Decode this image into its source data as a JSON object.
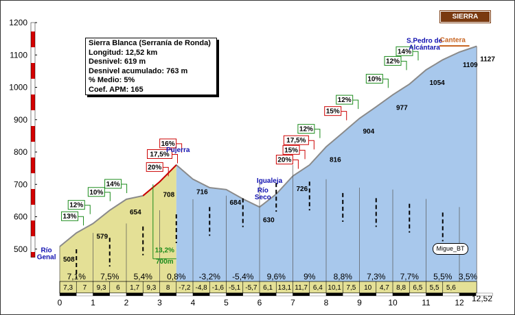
{
  "chart_data": {
    "type": "area",
    "title": "",
    "xlabel": "",
    "ylabel": "",
    "xlim": [
      0,
      12.52
    ],
    "ylim": [
      400,
      1200
    ],
    "x_ticks": [
      "0",
      "1",
      "2",
      "3",
      "4",
      "5",
      "6",
      "7",
      "8",
      "9",
      "10",
      "11",
      "12"
    ],
    "x_end_label": "12,52",
    "y_ticks": [
      "1200",
      "1100",
      "1000",
      "900",
      "800",
      "700",
      "600",
      "500"
    ],
    "profile": [
      [
        0,
        508
      ],
      [
        0.5,
        550
      ],
      [
        1,
        579
      ],
      [
        1.5,
        620
      ],
      [
        2,
        654
      ],
      [
        2.5,
        665
      ],
      [
        3,
        708
      ],
      [
        3.5,
        760
      ],
      [
        4,
        716
      ],
      [
        4.5,
        690
      ],
      [
        5,
        684
      ],
      [
        5.5,
        655
      ],
      [
        6,
        630
      ],
      [
        6.5,
        670
      ],
      [
        7,
        726
      ],
      [
        7.5,
        760
      ],
      [
        8,
        816
      ],
      [
        8.5,
        860
      ],
      [
        9,
        904
      ],
      [
        9.5,
        940
      ],
      [
        10,
        977
      ],
      [
        10.5,
        1010
      ],
      [
        11,
        1054
      ],
      [
        11.5,
        1085
      ],
      [
        12,
        1109
      ],
      [
        12.52,
        1127
      ]
    ],
    "climb_end_km": 3.5,
    "km_grade_labels": [
      "7,1%",
      "7,5%",
      "5,4%",
      "0,8%",
      "-3,2%",
      "-5,4%",
      "9,6%",
      "9%",
      "8,8%",
      "7,3%",
      "7,7%",
      "5,5%",
      "3,5%"
    ],
    "half_km_grades": [
      "7,3",
      "7",
      "9,3",
      "6",
      "1,7",
      "9,3",
      "8",
      "-7,2",
      "-4,8",
      "-1,6",
      "-5,1",
      "-5,7",
      "6,1",
      "13,1",
      "11,7",
      "6,4",
      "10,1",
      "7,5",
      "10",
      "4,7",
      "8,8",
      "6,5",
      "5,5",
      "5,6"
    ],
    "altitude_labels": [
      {
        "km": 0,
        "alt": 508,
        "text": "508"
      },
      {
        "km": 1,
        "alt": 579,
        "text": "579"
      },
      {
        "km": 2,
        "alt": 654,
        "text": "654"
      },
      {
        "km": 3,
        "alt": 708,
        "text": "708"
      },
      {
        "km": 4,
        "alt": 716,
        "text": "716"
      },
      {
        "km": 5,
        "alt": 684,
        "text": "684"
      },
      {
        "km": 6,
        "alt": 630,
        "text": "630"
      },
      {
        "km": 7,
        "alt": 726,
        "text": "726"
      },
      {
        "km": 8,
        "alt": 816,
        "text": "816"
      },
      {
        "km": 9,
        "alt": 904,
        "text": "904"
      },
      {
        "km": 10,
        "alt": 977,
        "text": "977"
      },
      {
        "km": 11,
        "alt": 1054,
        "text": "1054"
      },
      {
        "km": 12,
        "alt": 1109,
        "text": "1109"
      },
      {
        "km": 12.52,
        "alt": 1127,
        "text": "1127"
      }
    ],
    "ramp_annotations": [
      {
        "text": "13%",
        "km": 0.3,
        "alt": 590,
        "color": "#1a8a1a"
      },
      {
        "text": "12%",
        "km": 0.5,
        "alt": 625,
        "color": "#1a8a1a"
      },
      {
        "text": "10%",
        "km": 1.1,
        "alt": 665,
        "color": "#1a8a1a"
      },
      {
        "text": "14%",
        "km": 1.6,
        "alt": 690,
        "color": "#1a8a1a"
      },
      {
        "text": "20%",
        "km": 2.85,
        "alt": 742,
        "color": "#cc0000"
      },
      {
        "text": "17,5%",
        "km": 3.0,
        "alt": 782,
        "color": "#cc0000"
      },
      {
        "text": "16%",
        "km": 3.25,
        "alt": 815,
        "color": "#cc0000"
      },
      {
        "text": "20%",
        "km": 6.75,
        "alt": 765,
        "color": "#cc0000"
      },
      {
        "text": "15%",
        "km": 6.95,
        "alt": 795,
        "color": "#cc0000"
      },
      {
        "text": "17,5%",
        "km": 7.1,
        "alt": 825,
        "color": "#cc0000"
      },
      {
        "text": "12%",
        "km": 7.4,
        "alt": 860,
        "color": "#1a8a1a"
      },
      {
        "text": "15%",
        "km": 8.2,
        "alt": 915,
        "color": "#cc0000"
      },
      {
        "text": "12%",
        "km": 8.55,
        "alt": 950,
        "color": "#1a8a1a"
      },
      {
        "text": "10%",
        "km": 9.45,
        "alt": 1015,
        "color": "#1a8a1a"
      },
      {
        "text": "12%",
        "km": 10.0,
        "alt": 1070,
        "color": "#1a8a1a"
      },
      {
        "text": "14%",
        "km": 10.35,
        "alt": 1100,
        "color": "#1a8a1a"
      }
    ],
    "places": [
      {
        "lines": [
          "Río",
          "Genal"
        ],
        "km": -0.4,
        "alt": 490
      },
      {
        "lines": [
          "Pujerra"
        ],
        "km": 3.55,
        "alt": 800
      },
      {
        "lines": [
          "Igualeja"
        ],
        "km": 6.3,
        "alt": 705
      },
      {
        "lines": [
          "Río",
          "Seco"
        ],
        "km": 6.1,
        "alt": 675
      },
      {
        "lines": [
          "S.Pedro de",
          "Alcántara"
        ],
        "km": 10.95,
        "alt": 1138
      }
    ],
    "cantera_label": "Cantera",
    "distance_marker": "700m",
    "distance_grade": "13,2%"
  },
  "info": {
    "name": "Sierra Blanca (Serranía de Ronda)",
    "length": "Longitud: 12,52 km",
    "elevation_gain": "Desnivel: 619 m",
    "cumulative_gain": "Desnivel acumulado: 763 m",
    "avg_grade": "% Medio: 5%",
    "apm_coef": "Coef. APM: 165"
  },
  "summit_label": "SIERRA BLANCA",
  "author": "Migue_BT",
  "colors": {
    "climb_fill": "#e4e096",
    "profile_fill": "#a8c8ec",
    "profile_line": "#8a8a8a",
    "green_annotation": "#1a8a1a",
    "red_annotation": "#cc0000",
    "place_label": "#1010b0",
    "summit": "#7a3a10"
  }
}
